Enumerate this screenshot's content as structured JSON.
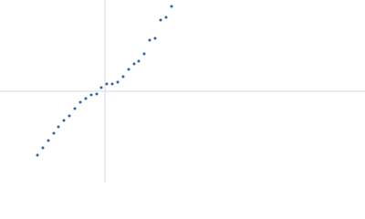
{
  "chart_data": {
    "type": "scatter",
    "x": [
      -0.74,
      -0.68,
      -0.62,
      -0.56,
      -0.51,
      -0.45,
      -0.39,
      -0.33,
      -0.27,
      -0.21,
      -0.15,
      -0.09,
      -0.04,
      0.02,
      0.08,
      0.14,
      0.2,
      0.26,
      0.32,
      0.37,
      0.43,
      0.49,
      0.55,
      0.61,
      0.67,
      0.73
    ],
    "values": [
      -0.7,
      -0.62,
      -0.54,
      -0.46,
      -0.39,
      -0.32,
      -0.27,
      -0.19,
      -0.12,
      -0.08,
      -0.04,
      -0.03,
      0.04,
      0.08,
      0.08,
      0.1,
      0.16,
      0.24,
      0.3,
      0.33,
      0.41,
      0.56,
      0.58,
      0.78,
      0.81,
      0.93
    ],
    "color": "#2f63a6",
    "xlim": [
      -1.15,
      2.85
    ],
    "ylim": [
      -1,
      1
    ],
    "xticks": [
      0
    ],
    "yticks": [
      0
    ],
    "grid": true,
    "grid_color": "#d3dbe4"
  }
}
